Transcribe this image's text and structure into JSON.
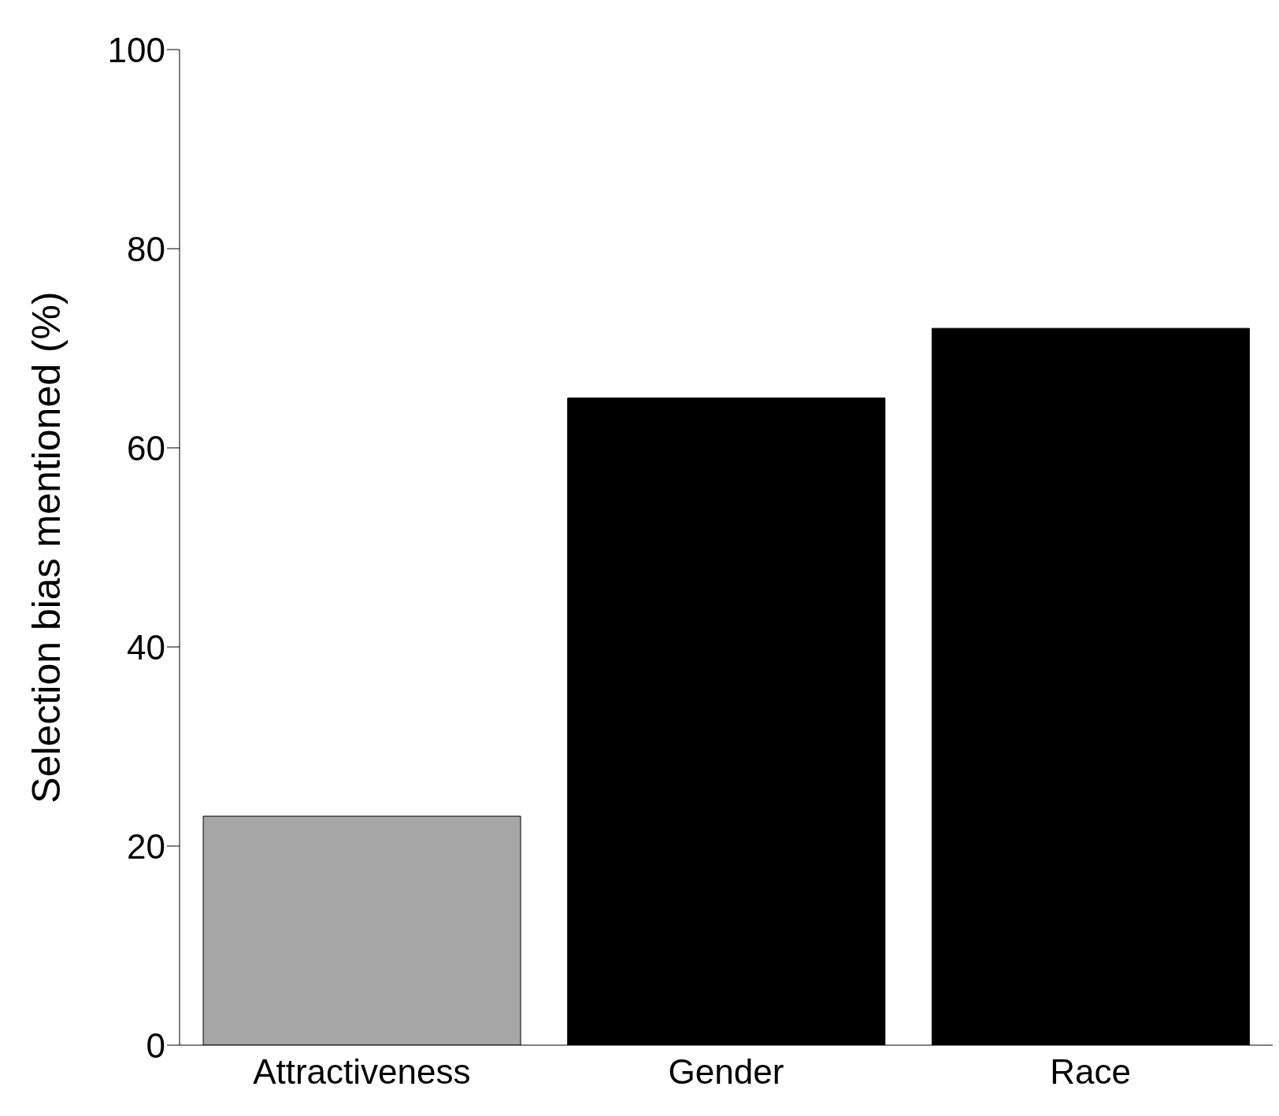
{
  "chart_data": {
    "type": "bar",
    "ylabel": "Selection bias mentioned (%)",
    "categories": [
      "Attractiveness",
      "Gender",
      "Race"
    ],
    "values": [
      23,
      65,
      72
    ],
    "colors": [
      "#a6a6a6",
      "#000000",
      "#000000"
    ],
    "ylim": [
      0,
      100
    ],
    "yticks": [
      0,
      20,
      40,
      60,
      80,
      100
    ]
  }
}
